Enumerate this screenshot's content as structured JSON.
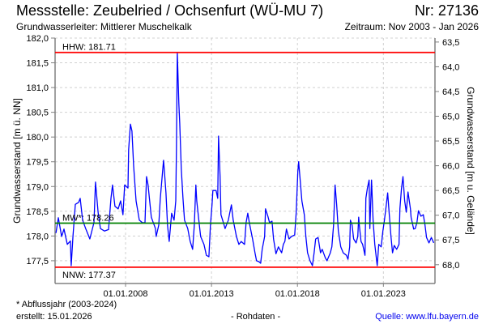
{
  "header": {
    "title": "Messstelle: Zeubelried / Ochsenfurt (WÜ-MU 7)",
    "number": "Nr: 27136",
    "aquifer": "Grundwasserleiter:   Mittlerer Muschelkalk",
    "period": "Zeitraum: Nov 2003 - Jan 2026"
  },
  "footer": {
    "footnote": "* Abflussjahr (2003-2024)",
    "created": "erstellt:  15.01.2026",
    "rawdata": "- Rohdaten -",
    "source": "Quelle: www.lfu.bayern.de"
  },
  "colors": {
    "series": "#0000ff",
    "extreme": "#ff0000",
    "mean": "#008000",
    "grid": "#d0d0d0",
    "axis": "#808080"
  },
  "chart_data": {
    "type": "line",
    "title": "Messstelle: Zeubelried / Ochsenfurt (WÜ-MU 7)",
    "ylabel": "Grundwasserstand [m ü. NN]",
    "y2label": "Grundwasserstand [m u. Gelände]",
    "xlabel": "",
    "xlim": [
      2003.9,
      2026.0
    ],
    "ylim": [
      177.04,
      182.0
    ],
    "ground_level": 245.42,
    "grid": true,
    "x_ticks": [
      {
        "value": 2008,
        "label": "01.01.2008"
      },
      {
        "value": 2013,
        "label": "01.01.2013"
      },
      {
        "value": 2018,
        "label": "01.01.2018"
      },
      {
        "value": 2023,
        "label": "01.01.2023"
      }
    ],
    "y_ticks": [
      "182,0",
      "181,5",
      "181,0",
      "180,5",
      "180,0",
      "179,5",
      "179,0",
      "178,5",
      "178,0",
      "177,5"
    ],
    "y_tick_values": [
      182.0,
      181.5,
      181.0,
      180.5,
      180.0,
      179.5,
      179.0,
      178.5,
      178.0,
      177.5
    ],
    "y2_ticks": [
      "63,5",
      "64,0",
      "64,5",
      "65,0",
      "65,5",
      "66,0",
      "66,5",
      "67,0",
      "67,5",
      "68,0"
    ],
    "y2_tick_values": [
      63.5,
      64.0,
      64.5,
      65.0,
      65.5,
      66.0,
      66.5,
      67.0,
      67.5,
      68.0
    ],
    "reference_lines": [
      {
        "name": "HHW",
        "label": "HHW: 181.71",
        "value": 181.71,
        "color": "#ff0000",
        "label_pos": "above"
      },
      {
        "name": "MW",
        "label": "MW*: 178.26",
        "value": 178.26,
        "color": "#008000",
        "label_pos": "above"
      },
      {
        "name": "NNW",
        "label": "NNW: 177.37",
        "value": 177.37,
        "color": "#ff0000",
        "label_pos": "below"
      }
    ],
    "series": [
      {
        "name": "Grundwasserstand",
        "x": [
          2003.95,
          2004.09,
          2004.28,
          2004.42,
          2004.61,
          2004.79,
          2004.84,
          2004.94,
          2005.08,
          2005.27,
          2005.36,
          2005.5,
          2005.69,
          2005.92,
          2006.16,
          2006.25,
          2006.4,
          2006.54,
          2006.77,
          2007.01,
          2007.15,
          2007.24,
          2007.38,
          2007.57,
          2007.71,
          2007.85,
          2007.95,
          2008.14,
          2008.18,
          2008.28,
          2008.37,
          2008.47,
          2008.61,
          2008.8,
          2008.98,
          2009.13,
          2009.22,
          2009.31,
          2009.5,
          2009.74,
          2009.78,
          2009.93,
          2010.02,
          2010.21,
          2010.26,
          2010.35,
          2010.44,
          2010.54,
          2010.68,
          2010.82,
          2010.92,
          2010.96,
          2011.01,
          2011.1,
          2011.15,
          2011.24,
          2011.34,
          2011.43,
          2011.62,
          2011.76,
          2011.9,
          2012.0,
          2012.09,
          2012.14,
          2012.28,
          2012.37,
          2012.56,
          2012.7,
          2012.85,
          2012.94,
          2013.03,
          2013.08,
          2013.27,
          2013.36,
          2013.41,
          2013.5,
          2013.55,
          2013.69,
          2013.79,
          2013.98,
          2014.07,
          2014.16,
          2014.26,
          2014.45,
          2014.59,
          2014.73,
          2014.92,
          2015.01,
          2015.11,
          2015.2,
          2015.39,
          2015.53,
          2015.62,
          2015.76,
          2015.86,
          2015.95,
          2016.09,
          2016.14,
          2016.28,
          2016.38,
          2016.52,
          2016.61,
          2016.75,
          2016.89,
          2017.08,
          2017.18,
          2017.27,
          2017.36,
          2017.51,
          2017.65,
          2017.84,
          2017.93,
          2018.02,
          2018.07,
          2018.17,
          2018.26,
          2018.4,
          2018.49,
          2018.59,
          2018.73,
          2018.87,
          2018.97,
          2019.06,
          2019.2,
          2019.34,
          2019.44,
          2019.62,
          2019.72,
          2019.91,
          2020.0,
          2020.1,
          2020.19,
          2020.28,
          2020.38,
          2020.52,
          2020.66,
          2020.85,
          2020.94,
          2021.04,
          2021.08,
          2021.18,
          2021.27,
          2021.41,
          2021.51,
          2021.56,
          2021.6,
          2021.7,
          2021.79,
          2021.93,
          2021.98,
          2022.07,
          2022.17,
          2022.21,
          2022.31,
          2022.4,
          2022.5,
          2022.64,
          2022.73,
          2022.87,
          2022.97,
          2023.06,
          2023.16,
          2023.25,
          2023.34,
          2023.44,
          2023.53,
          2023.63,
          2023.77,
          2023.91,
          2023.96,
          2024.05,
          2024.14,
          2024.24,
          2024.33,
          2024.43,
          2024.57,
          2024.61,
          2024.76,
          2024.85,
          2024.95,
          2025.04,
          2025.18,
          2025.32,
          2025.42,
          2025.51,
          2025.65,
          2025.79,
          2025.93
        ],
        "y": [
          178.06,
          178.37,
          177.99,
          178.14,
          177.83,
          177.9,
          177.4,
          178.0,
          178.64,
          178.68,
          178.76,
          178.32,
          178.14,
          177.94,
          178.27,
          179.09,
          178.48,
          178.15,
          178.1,
          178.13,
          178.76,
          179.03,
          178.6,
          178.55,
          178.71,
          178.43,
          179.03,
          178.97,
          179.74,
          180.26,
          180.12,
          179.41,
          178.71,
          178.32,
          178.27,
          178.27,
          179.2,
          179.03,
          178.38,
          178.15,
          177.99,
          178.22,
          178.76,
          179.53,
          179.3,
          178.87,
          178.22,
          177.89,
          178.46,
          178.32,
          178.71,
          179.74,
          181.71,
          180.67,
          180.28,
          179.36,
          178.76,
          178.32,
          178.15,
          177.89,
          177.73,
          178.22,
          179.03,
          178.71,
          178.27,
          177.99,
          177.83,
          177.61,
          177.58,
          178.22,
          178.64,
          178.92,
          178.92,
          178.76,
          180.02,
          179.2,
          178.43,
          178.27,
          178.15,
          178.32,
          178.48,
          178.63,
          178.32,
          177.99,
          177.83,
          177.89,
          177.83,
          178.27,
          178.46,
          178.27,
          177.94,
          177.66,
          177.5,
          177.48,
          177.45,
          177.73,
          177.99,
          178.55,
          178.4,
          178.27,
          178.3,
          177.94,
          177.64,
          177.78,
          177.66,
          177.83,
          177.89,
          178.14,
          177.94,
          177.99,
          178.02,
          178.48,
          179.3,
          179.5,
          179.09,
          178.71,
          178.43,
          177.99,
          177.66,
          177.5,
          177.4,
          177.66,
          177.94,
          177.97,
          177.66,
          177.73,
          177.56,
          177.5,
          177.66,
          177.78,
          178.22,
          179.03,
          178.64,
          178.1,
          177.78,
          177.66,
          177.61,
          177.53,
          177.78,
          178.32,
          178.22,
          177.94,
          177.86,
          177.99,
          178.38,
          178.22,
          177.89,
          177.83,
          177.61,
          178.76,
          178.97,
          179.13,
          178.15,
          179.13,
          178.32,
          177.83,
          177.4,
          177.83,
          177.78,
          178.1,
          178.32,
          178.6,
          178.87,
          178.43,
          177.99,
          177.66,
          177.81,
          177.73,
          177.83,
          178.55,
          178.95,
          179.2,
          178.71,
          178.48,
          178.89,
          178.55,
          178.38,
          178.14,
          178.15,
          178.27,
          178.51,
          178.4,
          178.43,
          178.22,
          177.97,
          177.86,
          177.97,
          177.86
        ]
      }
    ]
  }
}
